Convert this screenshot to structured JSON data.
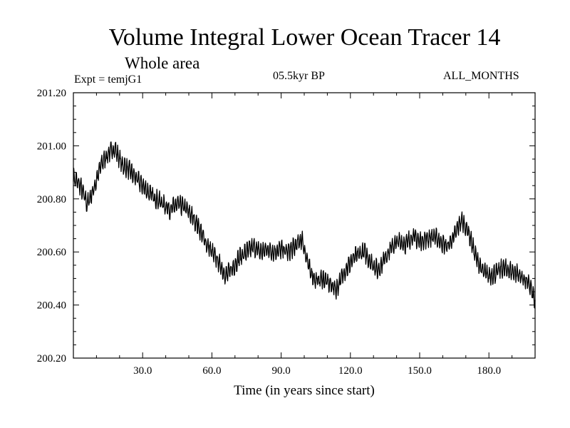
{
  "header": {
    "title": "Volume Integral Lower Ocean Tracer 14",
    "subtitle": "Whole area",
    "experiment": "Expt = temjG1",
    "period": "05.5kyr BP",
    "months": "ALL_MONTHS"
  },
  "chart_data": {
    "type": "line",
    "title": "Volume Integral Lower Ocean Tracer 14",
    "subtitle": "Whole area",
    "xlabel": "Time (in years since start)",
    "ylabel": "",
    "xlim": [
      0,
      200
    ],
    "ylim": [
      200.2,
      201.2
    ],
    "xticks": [
      30,
      60,
      90,
      120,
      150,
      180
    ],
    "xtick_labels": [
      "30.0",
      "60.0",
      "90.0",
      "120.0",
      "150.0",
      "180.0"
    ],
    "yticks": [
      200.2,
      200.4,
      200.6,
      200.8,
      201.0,
      201.2
    ],
    "ytick_labels": [
      "200.20",
      "200.40",
      "200.60",
      "200.80",
      "201.00",
      "201.20"
    ],
    "grid": false,
    "series": [
      {
        "name": "Lower Ocean Tracer 14",
        "x": [
          0,
          3,
          6,
          9,
          12,
          15,
          18,
          21,
          24,
          27,
          30,
          33,
          36,
          39,
          42,
          45,
          48,
          51,
          54,
          57,
          60,
          63,
          66,
          69,
          72,
          75,
          78,
          81,
          84,
          87,
          90,
          93,
          96,
          99,
          102,
          105,
          108,
          111,
          114,
          117,
          120,
          123,
          126,
          129,
          132,
          135,
          138,
          141,
          144,
          147,
          150,
          153,
          156,
          159,
          162,
          165,
          168,
          171,
          174,
          177,
          180,
          183,
          186,
          189,
          192,
          195,
          198,
          200
        ],
        "values": [
          200.88,
          200.85,
          200.78,
          200.84,
          200.93,
          200.97,
          200.99,
          200.93,
          200.91,
          200.88,
          200.85,
          200.82,
          200.8,
          200.78,
          200.76,
          200.78,
          200.77,
          200.74,
          200.7,
          200.64,
          200.6,
          200.56,
          200.51,
          200.54,
          200.58,
          200.6,
          200.62,
          200.6,
          200.61,
          200.6,
          200.61,
          200.6,
          200.62,
          200.65,
          200.54,
          200.49,
          200.5,
          200.48,
          200.46,
          200.52,
          200.56,
          200.59,
          200.6,
          200.56,
          200.53,
          200.58,
          200.62,
          200.64,
          200.63,
          200.66,
          200.64,
          200.65,
          200.66,
          200.64,
          200.62,
          200.66,
          200.72,
          200.68,
          200.59,
          200.53,
          200.51,
          200.52,
          200.54,
          200.53,
          200.52,
          200.5,
          200.47,
          200.41
        ]
      }
    ]
  }
}
